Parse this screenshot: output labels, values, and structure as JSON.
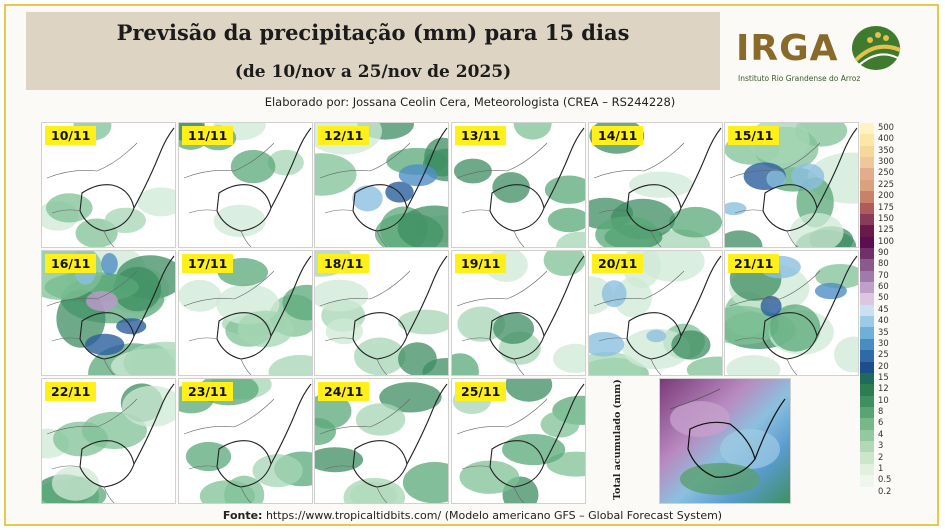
{
  "header": {
    "title": "Previsão da precipitação (mm) para 15 dias",
    "subtitle": "(de 10/nov a 25/nov de 2025)",
    "credit": "Elaborado por: Jossana Ceolin Cera, Meteorologista (CREA – RS244228)"
  },
  "logo": {
    "name": "IRGA",
    "tagline": "Instituto Rio Grandense do Arroz"
  },
  "panels": [
    {
      "date": "10/11",
      "intensity": 0.15
    },
    {
      "date": "11/11",
      "intensity": 0.25
    },
    {
      "date": "12/11",
      "intensity": 0.55
    },
    {
      "date": "13/11",
      "intensity": 0.2
    },
    {
      "date": "14/11",
      "intensity": 0.4
    },
    {
      "date": "15/11",
      "intensity": 0.7
    },
    {
      "date": "16/11",
      "intensity": 0.85
    },
    {
      "date": "17/11",
      "intensity": 0.45
    },
    {
      "date": "18/11",
      "intensity": 0.35
    },
    {
      "date": "19/11",
      "intensity": 0.3
    },
    {
      "date": "20/11",
      "intensity": 0.55
    },
    {
      "date": "21/11",
      "intensity": 0.6
    },
    {
      "date": "22/11",
      "intensity": 0.45
    },
    {
      "date": "23/11",
      "intensity": 0.35
    },
    {
      "date": "24/11",
      "intensity": 0.4
    },
    {
      "date": "25/11",
      "intensity": 0.35
    }
  ],
  "total_panel": {
    "label": "Total acumulado (mm)"
  },
  "colorbar": {
    "levels": [
      "500",
      "400",
      "350",
      "300",
      "250",
      "225",
      "200",
      "175",
      "150",
      "125",
      "100",
      "90",
      "80",
      "70",
      "60",
      "50",
      "45",
      "40",
      "35",
      "30",
      "25",
      "20",
      "15",
      "12",
      "10",
      "8",
      "6",
      "4",
      "3",
      "2",
      "1",
      "0.5",
      "0.2"
    ],
    "colors": [
      "#fff3c4",
      "#fde7a6",
      "#f7d89a",
      "#efc79c",
      "#e2ad8c",
      "#d8a27c",
      "#c8826a",
      "#b05a5a",
      "#8a3a5a",
      "#6a1a4a",
      "#5a1050",
      "#70306a",
      "#8a5a8a",
      "#a07aa8",
      "#c0a0c8",
      "#dcc6e0",
      "#c8e2f2",
      "#9ccbe6",
      "#6fb0d8",
      "#4a8cc2",
      "#2f6aa8",
      "#1c4e8c",
      "#1f6a5a",
      "#2e7d52",
      "#3e9060",
      "#58a472",
      "#76b888",
      "#94c89e",
      "#b2d8b6",
      "#cce6cc",
      "#e2f0e0",
      "#eef6ee",
      "#f8fbf8"
    ]
  },
  "footer": {
    "label": "Fonte:",
    "text": " https://www.tropicaltidbits.com/ (Modelo americano GFS – Global Forecast System)"
  }
}
